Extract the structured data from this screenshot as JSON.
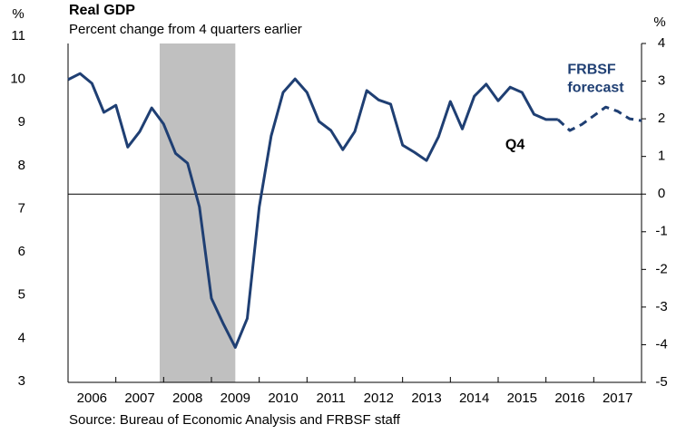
{
  "chart_data": {
    "type": "line",
    "title": "Real GDP",
    "subtitle": "Percent change from 4 quarters earlier",
    "source": "Source: Bureau of Economic Analysis and FRBSF staff",
    "y_unit": "%",
    "y2_unit": "%",
    "xlim": [
      2006,
      2018
    ],
    "xticks": [
      2007,
      2008,
      2009,
      2010,
      2011,
      2012,
      2013,
      2014,
      2015,
      2016,
      2017
    ],
    "year_labels": [
      "2006",
      "2007",
      "2008",
      "2009",
      "2010",
      "2011",
      "2012",
      "2013",
      "2014",
      "2015",
      "2016",
      "2017"
    ],
    "ylim": [
      -5,
      4
    ],
    "yticks": [
      -5,
      -4,
      -3,
      -2,
      -1,
      0,
      1,
      2,
      3,
      4
    ],
    "y2lim": [
      2.98,
      10.83
    ],
    "y2ticks": [
      3,
      4,
      5,
      6,
      7,
      8,
      9,
      10,
      11
    ],
    "shaded_ranges": [
      [
        2007.917,
        2009.5
      ]
    ],
    "shade_color": "#c0c0c0",
    "series": [
      {
        "color": "#1f3f73",
        "dash": false,
        "x": [
          2006,
          2006.25,
          2006.5,
          2006.75,
          2007,
          2007.25,
          2007.5,
          2007.75,
          2008,
          2008.25,
          2008.5,
          2008.75,
          2009,
          2009.25,
          2009.5,
          2009.75,
          2010,
          2010.25,
          2010.5,
          2010.75,
          2011,
          2011.25,
          2011.5,
          2011.75,
          2012,
          2012.25,
          2012.5,
          2012.75,
          2013,
          2013.25,
          2013.5,
          2013.75,
          2014,
          2014.25,
          2014.5,
          2014.75,
          2015,
          2015.25,
          2015.5,
          2015.75,
          2016,
          2016.25
        ],
        "values": [
          3.04,
          3.2,
          2.94,
          2.17,
          2.36,
          1.25,
          1.66,
          2.29,
          1.86,
          1.08,
          0.82,
          -0.34,
          -2.77,
          -3.45,
          -4.07,
          -3.3,
          -0.34,
          1.54,
          2.7,
          3.06,
          2.7,
          1.93,
          1.69,
          1.18,
          1.66,
          2.75,
          2.5,
          2.39,
          1.3,
          1.11,
          0.89,
          1.52,
          2.46,
          1.73,
          2.6,
          2.92,
          2.48,
          2.84,
          2.7,
          2.12,
          1.98,
          1.98
        ]
      },
      {
        "color": "#1f3f73",
        "dash": true,
        "x": [
          2016.25,
          2016.5,
          2016.75,
          2017,
          2017.25,
          2017.5,
          2017.75,
          2018
        ],
        "values": [
          1.98,
          1.69,
          1.85,
          2.08,
          2.31,
          2.2,
          2.0,
          1.95
        ]
      }
    ],
    "annotations": [
      {
        "text": "FRBSF",
        "x": 2016.45,
        "y": 3.3,
        "color": "#1f3f73"
      },
      {
        "text": "forecast",
        "x": 2016.45,
        "y": 2.82,
        "color": "#1f3f73"
      },
      {
        "text": "Q4",
        "x": 2015.15,
        "y": 1.3,
        "color": "#000000"
      }
    ]
  }
}
